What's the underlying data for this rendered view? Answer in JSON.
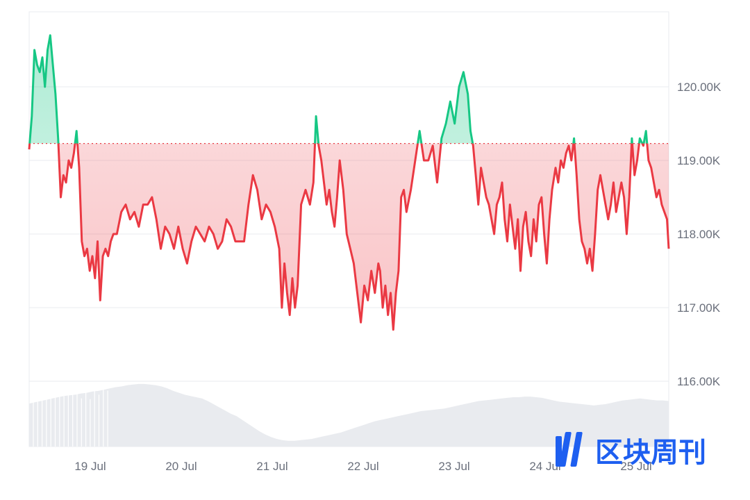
{
  "chart_data": {
    "type": "line",
    "title": "",
    "xlabel": "",
    "ylabel": "",
    "baseline": 119230,
    "ylim": [
      116000,
      121000
    ],
    "grid": true,
    "x_range": [
      "18 Jul 2025 09:00",
      "25 Jul 2025 11:00"
    ],
    "y_ticks": [
      "120.00K",
      "119.00K",
      "118.00K",
      "117.00K",
      "116.00K"
    ],
    "y_tick_values": [
      120000,
      119000,
      118000,
      117000,
      116000
    ],
    "x_ticks": [
      "19 Jul",
      "20 Jul",
      "21 Jul",
      "22 Jul",
      "23 Jul",
      "24 Jul",
      "25 Jul"
    ],
    "x_tick_days": [
      1,
      2,
      3,
      4,
      5,
      6,
      7
    ],
    "series": [
      {
        "points": [
          [
            0.0,
            119150
          ],
          [
            0.03,
            119600
          ],
          [
            0.06,
            120500
          ],
          [
            0.09,
            120300
          ],
          [
            0.12,
            120200
          ],
          [
            0.15,
            120400
          ],
          [
            0.18,
            120000
          ],
          [
            0.21,
            120500
          ],
          [
            0.24,
            120700
          ],
          [
            0.27,
            120300
          ],
          [
            0.3,
            119900
          ],
          [
            0.33,
            119300
          ],
          [
            0.36,
            118500
          ],
          [
            0.39,
            118800
          ],
          [
            0.42,
            118700
          ],
          [
            0.45,
            119000
          ],
          [
            0.48,
            118900
          ],
          [
            0.51,
            119100
          ],
          [
            0.54,
            119400
          ],
          [
            0.57,
            118900
          ],
          [
            0.6,
            117900
          ],
          [
            0.63,
            117700
          ],
          [
            0.66,
            117800
          ],
          [
            0.69,
            117500
          ],
          [
            0.72,
            117700
          ],
          [
            0.75,
            117400
          ],
          [
            0.78,
            117900
          ],
          [
            0.81,
            117100
          ],
          [
            0.84,
            117700
          ],
          [
            0.87,
            117800
          ],
          [
            0.9,
            117700
          ],
          [
            0.93,
            117900
          ],
          [
            0.96,
            118000
          ],
          [
            1.0,
            118000
          ],
          [
            1.05,
            118300
          ],
          [
            1.1,
            118400
          ],
          [
            1.15,
            118200
          ],
          [
            1.2,
            118300
          ],
          [
            1.25,
            118100
          ],
          [
            1.3,
            118400
          ],
          [
            1.35,
            118400
          ],
          [
            1.4,
            118500
          ],
          [
            1.45,
            118200
          ],
          [
            1.5,
            117800
          ],
          [
            1.55,
            118100
          ],
          [
            1.6,
            118000
          ],
          [
            1.65,
            117800
          ],
          [
            1.7,
            118100
          ],
          [
            1.75,
            117800
          ],
          [
            1.8,
            117600
          ],
          [
            1.85,
            117900
          ],
          [
            1.9,
            118100
          ],
          [
            1.95,
            118000
          ],
          [
            2.0,
            117900
          ],
          [
            2.05,
            118100
          ],
          [
            2.1,
            118000
          ],
          [
            2.15,
            117800
          ],
          [
            2.2,
            117900
          ],
          [
            2.25,
            118200
          ],
          [
            2.3,
            118100
          ],
          [
            2.35,
            117900
          ],
          [
            2.4,
            117900
          ],
          [
            2.45,
            117900
          ],
          [
            2.5,
            118400
          ],
          [
            2.55,
            118800
          ],
          [
            2.6,
            118600
          ],
          [
            2.65,
            118200
          ],
          [
            2.7,
            118400
          ],
          [
            2.75,
            118300
          ],
          [
            2.8,
            118100
          ],
          [
            2.85,
            117800
          ],
          [
            2.88,
            117000
          ],
          [
            2.91,
            117600
          ],
          [
            2.94,
            117200
          ],
          [
            2.97,
            116900
          ],
          [
            3.0,
            117400
          ],
          [
            3.03,
            117000
          ],
          [
            3.06,
            117300
          ],
          [
            3.1,
            118400
          ],
          [
            3.15,
            118600
          ],
          [
            3.2,
            118400
          ],
          [
            3.24,
            118700
          ],
          [
            3.27,
            119600
          ],
          [
            3.3,
            119200
          ],
          [
            3.33,
            119000
          ],
          [
            3.36,
            118700
          ],
          [
            3.39,
            118400
          ],
          [
            3.42,
            118600
          ],
          [
            3.45,
            118300
          ],
          [
            3.48,
            118100
          ],
          [
            3.51,
            118500
          ],
          [
            3.54,
            119000
          ],
          [
            3.58,
            118600
          ],
          [
            3.62,
            118000
          ],
          [
            3.66,
            117800
          ],
          [
            3.7,
            117600
          ],
          [
            3.74,
            117200
          ],
          [
            3.78,
            116800
          ],
          [
            3.82,
            117300
          ],
          [
            3.86,
            117100
          ],
          [
            3.9,
            117500
          ],
          [
            3.94,
            117200
          ],
          [
            3.98,
            117600
          ],
          [
            4.0,
            117500
          ],
          [
            4.03,
            117000
          ],
          [
            4.06,
            117300
          ],
          [
            4.09,
            116900
          ],
          [
            4.12,
            117200
          ],
          [
            4.15,
            116700
          ],
          [
            4.18,
            117200
          ],
          [
            4.21,
            117500
          ],
          [
            4.24,
            118500
          ],
          [
            4.27,
            118600
          ],
          [
            4.3,
            118300
          ],
          [
            4.35,
            118600
          ],
          [
            4.4,
            119000
          ],
          [
            4.45,
            119400
          ],
          [
            4.5,
            119000
          ],
          [
            4.55,
            119000
          ],
          [
            4.6,
            119200
          ],
          [
            4.65,
            118700
          ],
          [
            4.7,
            119300
          ],
          [
            4.75,
            119500
          ],
          [
            4.8,
            119800
          ],
          [
            4.85,
            119500
          ],
          [
            4.9,
            120000
          ],
          [
            4.95,
            120200
          ],
          [
            5.0,
            119900
          ],
          [
            5.03,
            119400
          ],
          [
            5.06,
            119200
          ],
          [
            5.09,
            118800
          ],
          [
            5.12,
            118400
          ],
          [
            5.15,
            118900
          ],
          [
            5.18,
            118700
          ],
          [
            5.21,
            118500
          ],
          [
            5.24,
            118400
          ],
          [
            5.27,
            118200
          ],
          [
            5.3,
            118000
          ],
          [
            5.33,
            118400
          ],
          [
            5.36,
            118500
          ],
          [
            5.39,
            118700
          ],
          [
            5.42,
            118200
          ],
          [
            5.45,
            117900
          ],
          [
            5.48,
            118400
          ],
          [
            5.51,
            118100
          ],
          [
            5.54,
            117800
          ],
          [
            5.57,
            118200
          ],
          [
            5.6,
            117500
          ],
          [
            5.63,
            118100
          ],
          [
            5.66,
            118300
          ],
          [
            5.69,
            117900
          ],
          [
            5.72,
            117700
          ],
          [
            5.75,
            118200
          ],
          [
            5.78,
            117900
          ],
          [
            5.81,
            118400
          ],
          [
            5.84,
            118500
          ],
          [
            5.87,
            118000
          ],
          [
            5.9,
            117600
          ],
          [
            5.93,
            118200
          ],
          [
            5.96,
            118600
          ],
          [
            6.0,
            118900
          ],
          [
            6.03,
            118700
          ],
          [
            6.06,
            119000
          ],
          [
            6.09,
            118900
          ],
          [
            6.12,
            119100
          ],
          [
            6.15,
            119200
          ],
          [
            6.18,
            119000
          ],
          [
            6.21,
            119300
          ],
          [
            6.24,
            118800
          ],
          [
            6.27,
            118200
          ],
          [
            6.3,
            117900
          ],
          [
            6.33,
            117800
          ],
          [
            6.36,
            117600
          ],
          [
            6.39,
            117800
          ],
          [
            6.42,
            117500
          ],
          [
            6.45,
            118000
          ],
          [
            6.48,
            118600
          ],
          [
            6.51,
            118800
          ],
          [
            6.54,
            118600
          ],
          [
            6.57,
            118400
          ],
          [
            6.6,
            118200
          ],
          [
            6.63,
            118400
          ],
          [
            6.66,
            118700
          ],
          [
            6.69,
            118300
          ],
          [
            6.72,
            118500
          ],
          [
            6.75,
            118700
          ],
          [
            6.78,
            118500
          ],
          [
            6.81,
            118000
          ],
          [
            6.84,
            118500
          ],
          [
            6.87,
            119300
          ],
          [
            6.9,
            118800
          ],
          [
            6.93,
            119000
          ],
          [
            6.96,
            119300
          ],
          [
            7.0,
            119200
          ],
          [
            7.03,
            119400
          ],
          [
            7.06,
            119000
          ],
          [
            7.09,
            118900
          ],
          [
            7.12,
            118700
          ],
          [
            7.15,
            118500
          ],
          [
            7.18,
            118600
          ],
          [
            7.21,
            118400
          ],
          [
            7.24,
            118300
          ],
          [
            7.27,
            118200
          ],
          [
            7.29,
            117800
          ]
        ]
      }
    ],
    "volume": {
      "values": [
        0.68,
        0.7,
        0.72,
        0.74,
        0.76,
        0.78,
        0.8,
        0.81,
        0.82,
        0.84,
        0.85,
        0.87,
        0.88,
        0.9,
        0.92,
        0.94,
        0.95,
        0.97,
        0.98,
        0.99,
        0.99,
        0.98,
        0.97,
        0.95,
        0.92,
        0.88,
        0.85,
        0.82,
        0.8,
        0.78,
        0.76,
        0.72,
        0.67,
        0.62,
        0.57,
        0.52,
        0.48,
        0.42,
        0.36,
        0.3,
        0.24,
        0.19,
        0.15,
        0.12,
        0.1,
        0.09,
        0.09,
        0.1,
        0.11,
        0.12,
        0.14,
        0.16,
        0.18,
        0.2,
        0.22,
        0.25,
        0.28,
        0.31,
        0.34,
        0.37,
        0.4,
        0.42,
        0.44,
        0.46,
        0.48,
        0.5,
        0.52,
        0.54,
        0.56,
        0.57,
        0.58,
        0.59,
        0.6,
        0.62,
        0.64,
        0.66,
        0.68,
        0.7,
        0.72,
        0.73,
        0.74,
        0.75,
        0.76,
        0.77,
        0.78,
        0.78,
        0.79,
        0.79,
        0.78,
        0.77,
        0.75,
        0.73,
        0.71,
        0.7,
        0.69,
        0.68,
        0.67,
        0.66,
        0.65,
        0.66,
        0.67,
        0.69,
        0.71,
        0.73,
        0.74,
        0.75,
        0.76,
        0.75,
        0.74,
        0.73,
        0.73,
        0.72
      ]
    }
  },
  "colors": {
    "up_line": "#16c784",
    "down_line": "#ea3943",
    "up_fill": "#16c784",
    "down_fill": "#ea3943",
    "grid": "#e9ebef",
    "baseline": "#ea3943",
    "volume": "#e9ebef",
    "axis_text": "#6a6f7b",
    "logo": "#1e5ff0"
  },
  "watermark": {
    "text": "区块周刊",
    "icon": "bar-logo-icon"
  }
}
